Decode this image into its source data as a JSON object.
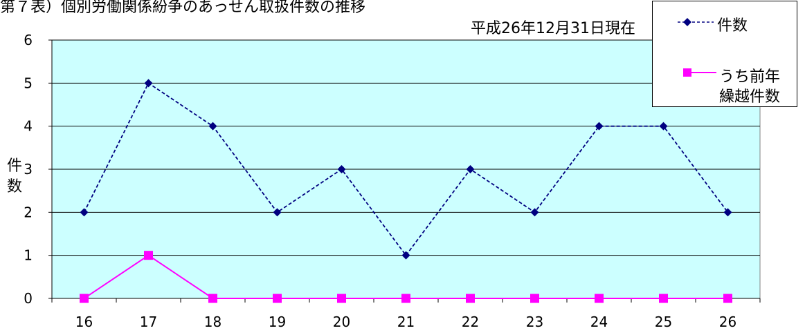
{
  "chart_data": {
    "type": "line",
    "title": "第７表）個別労働関係紛争のあっせん取扱件数の推移",
    "note": "平成26年12月31日現在",
    "ylabel": "件数",
    "ylim": [
      0,
      6
    ],
    "yticks": [
      0,
      1,
      2,
      3,
      4,
      5,
      6
    ],
    "categories": [
      "16",
      "17",
      "18",
      "19",
      "20",
      "21",
      "22",
      "23",
      "24",
      "25",
      "26"
    ],
    "grid": true,
    "legend_position": "top-right",
    "series": [
      {
        "name": "件数",
        "values": [
          2,
          5,
          4,
          2,
          3,
          1,
          3,
          2,
          4,
          4,
          2
        ],
        "color": "#000080",
        "marker": "diamond",
        "line_style": "dashed"
      },
      {
        "name": "うち前年繰越件数",
        "values": [
          0,
          1,
          0,
          0,
          0,
          0,
          0,
          0,
          0,
          0,
          0
        ],
        "color": "#FF00FF",
        "marker": "square",
        "line_style": "solid"
      }
    ],
    "colors": {
      "plot_background": "#CCFFFF",
      "gridline": "#000000"
    }
  },
  "legend": {
    "line1": "件数",
    "line2a": "うち前年",
    "line2b": "繰越件数"
  },
  "ylabel_chars": [
    "件",
    "数"
  ]
}
